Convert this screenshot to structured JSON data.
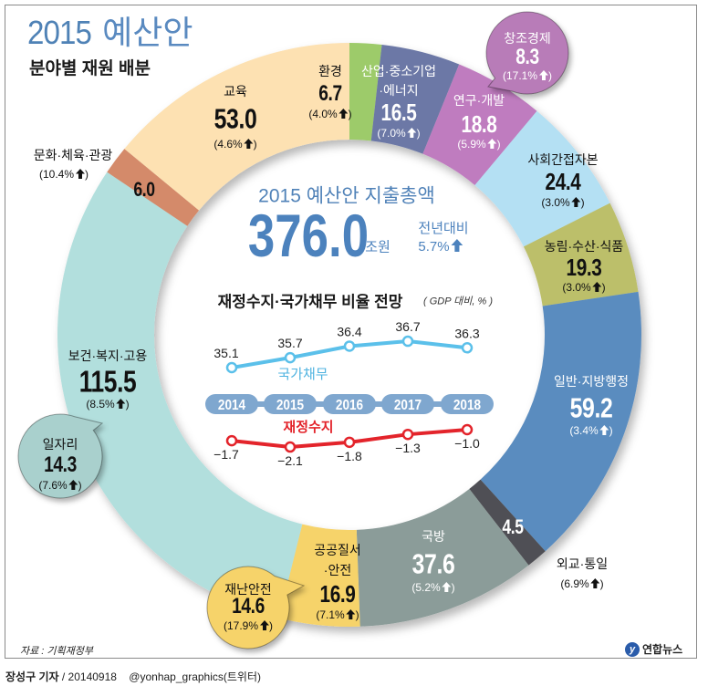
{
  "header": {
    "title_year": "2015",
    "title_text": "예산안",
    "subtitle": "분야별 재원 배분"
  },
  "total": {
    "heading": "2015 예산안 지출총액",
    "amount": "376.0",
    "unit": "조원",
    "yoy_label": "전년대비",
    "yoy_value": "5.7%",
    "yoy_direction": "up"
  },
  "chart_data": [
    {
      "type": "pie",
      "variant": "donut",
      "title": "2015 예산안 분야별 재원 배분",
      "unit": "조원",
      "total": 376.0,
      "order": "clockwise-from-top",
      "slices": [
        {
          "label": "환경",
          "label_lines": [
            "환경"
          ],
          "value": 6.7,
          "change": "4.0%",
          "direction": "up",
          "color": "#9dcb6b"
        },
        {
          "label": "산업·중소기업·에너지",
          "label_lines": [
            "산업·중소기업",
            "·에너지"
          ],
          "value": 16.5,
          "change": "7.0%",
          "direction": "up",
          "color": "#6c78a6"
        },
        {
          "label": "연구·개발",
          "label_lines": [
            "연구·개발"
          ],
          "value": 18.8,
          "change": "5.9%",
          "direction": "up",
          "color": "#bf7cbf"
        },
        {
          "label": "사회간접자본",
          "label_lines": [
            "사회간접자본"
          ],
          "value": 24.4,
          "change": "3.0%",
          "direction": "up",
          "color": "#b4e0f3"
        },
        {
          "label": "농림·수산·식품",
          "label_lines": [
            "농림·수산·식품"
          ],
          "value": 19.3,
          "change": "3.0%",
          "direction": "up",
          "color": "#bcbf6b"
        },
        {
          "label": "일반·지방행정",
          "label_lines": [
            "일반·지방행정"
          ],
          "value": 59.2,
          "change": "3.4%",
          "direction": "up",
          "color": "#5a8cbf"
        },
        {
          "label": "외교·통일",
          "label_lines": [
            "외교·통일"
          ],
          "value": 4.5,
          "change": "6.9%",
          "direction": "up",
          "color": "#505054"
        },
        {
          "label": "국방",
          "label_lines": [
            "국방"
          ],
          "value": 37.6,
          "change": "5.2%",
          "direction": "up",
          "color": "#8b9c99"
        },
        {
          "label": "공공질서·안전",
          "label_lines": [
            "공공질서",
            "·안전"
          ],
          "value": 16.9,
          "change": "7.1%",
          "direction": "up",
          "color": "#f6d36b"
        },
        {
          "label": "보건·복지·고용",
          "label_lines": [
            "보건·복지·고용"
          ],
          "value": 115.5,
          "change": "8.5%",
          "direction": "up",
          "color": "#b2dfdd"
        },
        {
          "label": "문화·체육·관광",
          "label_lines": [
            "문화·체육·관광"
          ],
          "value": 6.0,
          "change": "10.4%",
          "direction": "up",
          "color": "#d48a6b"
        },
        {
          "label": "교육",
          "label_lines": [
            "교육"
          ],
          "value": 53.0,
          "change": "4.6%",
          "direction": "up",
          "color": "#fde1b2"
        }
      ],
      "callouts": [
        {
          "label": "창조경제",
          "value": 8.3,
          "change": "17.1%",
          "direction": "up",
          "parent": "연구·개발",
          "color": "#b87cb8"
        },
        {
          "label": "재난안전",
          "value": 14.6,
          "change": "17.9%",
          "direction": "up",
          "parent": "공공질서·안전",
          "color": "#f6d36b"
        },
        {
          "label": "일자리",
          "value": 14.3,
          "change": "7.6%",
          "direction": "up",
          "parent": "보건·복지·고용",
          "color": "#a9d0cd"
        }
      ]
    },
    {
      "type": "line",
      "title": "재정수지·국가채무 비율 전망",
      "unit_note": "( GDP 대비, % )",
      "categories": [
        "2014",
        "2015",
        "2016",
        "2017",
        "2018"
      ],
      "series": [
        {
          "name": "국가채무",
          "values": [
            35.1,
            35.7,
            36.4,
            36.7,
            36.3
          ],
          "color": "#5bc0ea"
        },
        {
          "name": "재정수지",
          "values": [
            -1.7,
            -2.1,
            -1.8,
            -1.3,
            -1.0
          ],
          "color": "#e3242b"
        }
      ],
      "grid": false,
      "legend": "inline-labels"
    }
  ],
  "colors": {
    "title": "#4f82b6",
    "year_pill": "#7fa7cf",
    "arrow": "#111111"
  },
  "footer": {
    "source": "자료 : 기획재정부",
    "reporter": "장성구 기자",
    "date": "/ 20140918",
    "social": "@yonhap_graphics(트위터)",
    "logo_mark": "y",
    "logo_text": "연합뉴스"
  }
}
